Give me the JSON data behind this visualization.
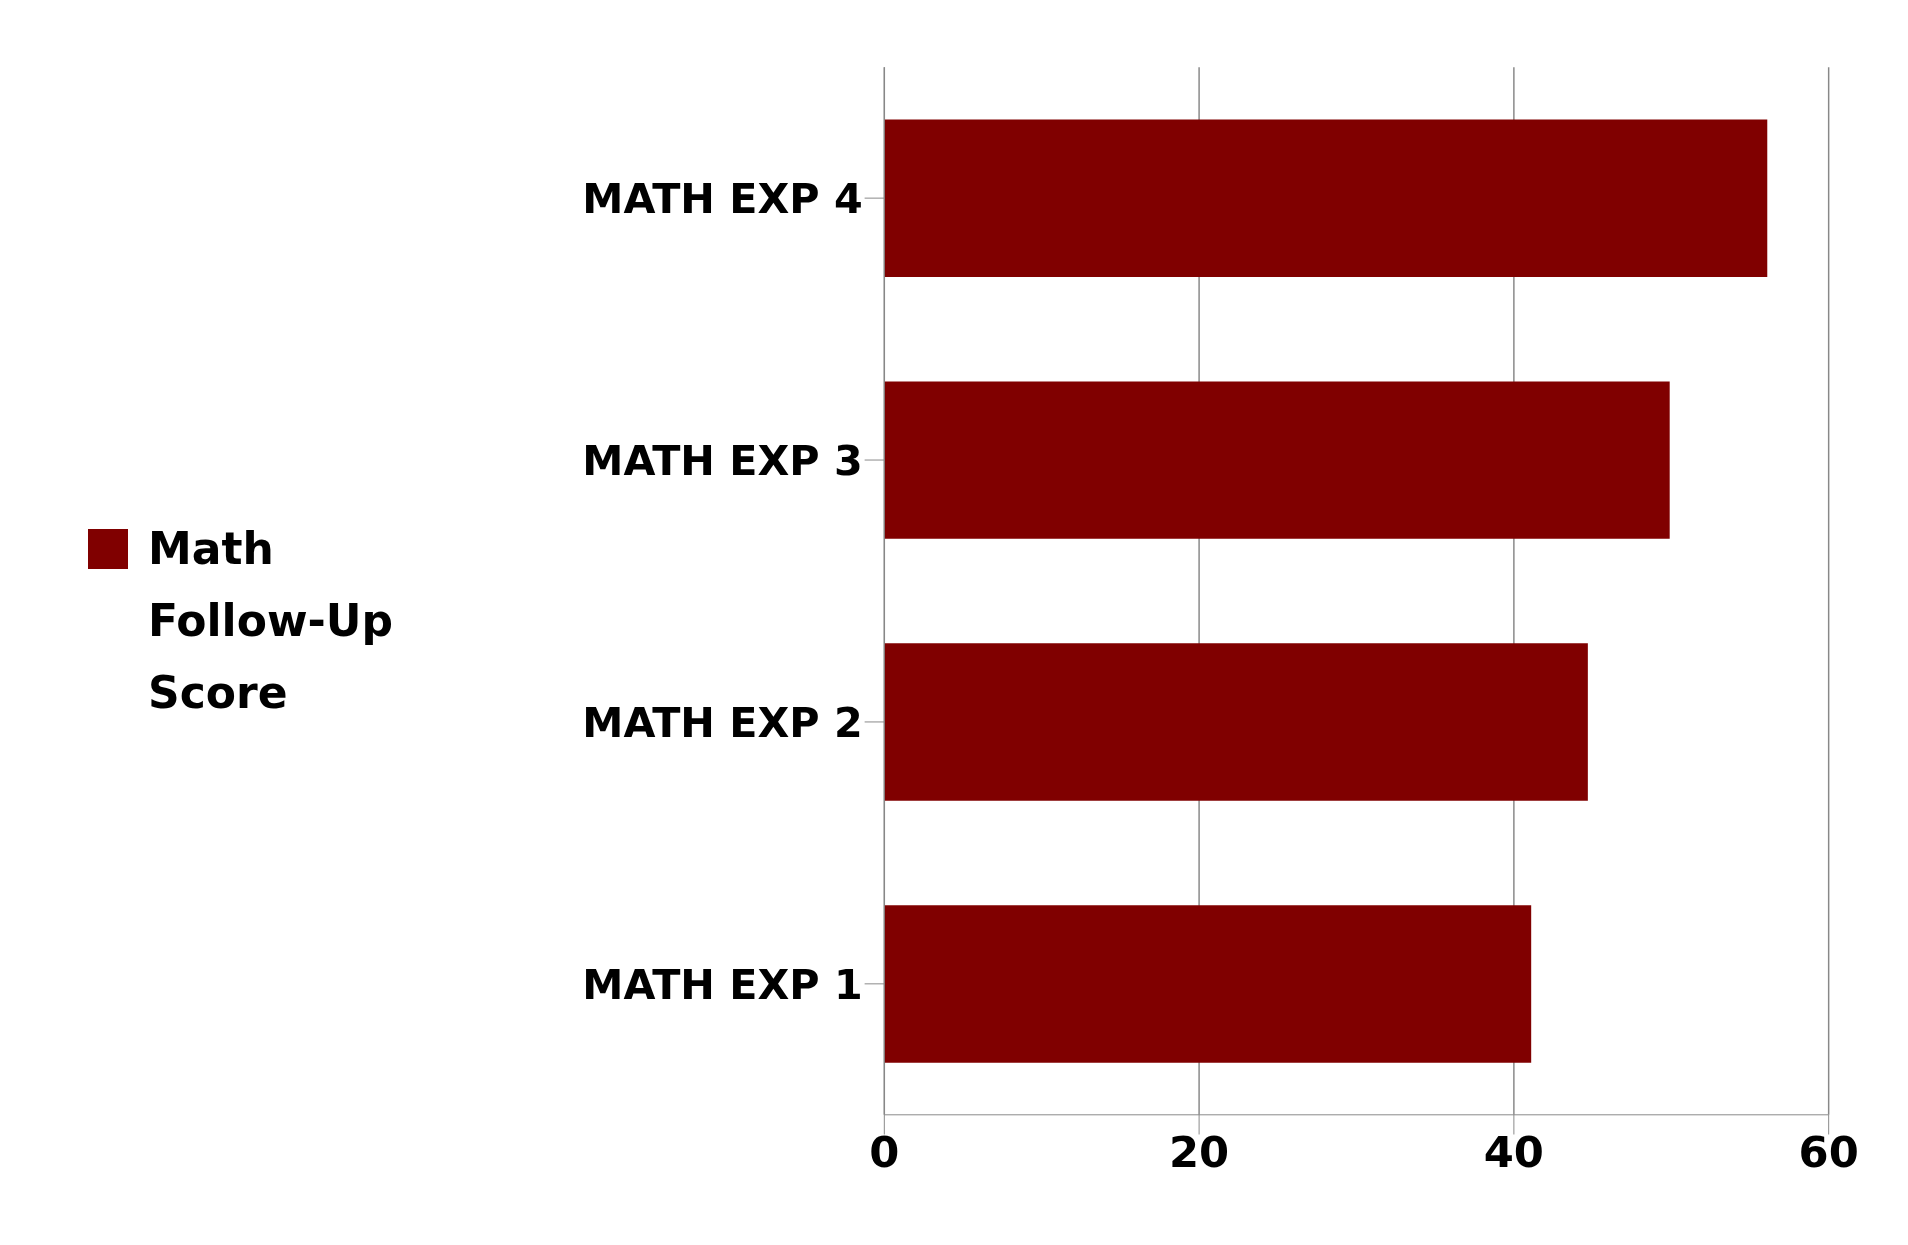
{
  "chart_data": {
    "type": "bar",
    "orientation": "horizontal",
    "categories": [
      "MATH EXP 4",
      "MATH EXP 3",
      "MATH EXP 2",
      "MATH EXP 1"
    ],
    "series": [
      {
        "name": "Math Follow-Up Score",
        "color": "#800000",
        "values": [
          56.1,
          49.9,
          44.7,
          41.1
        ]
      }
    ],
    "xlim": [
      0,
      60
    ],
    "xticks": [
      0,
      20,
      40,
      60
    ],
    "grid": "x",
    "legend": "left"
  }
}
